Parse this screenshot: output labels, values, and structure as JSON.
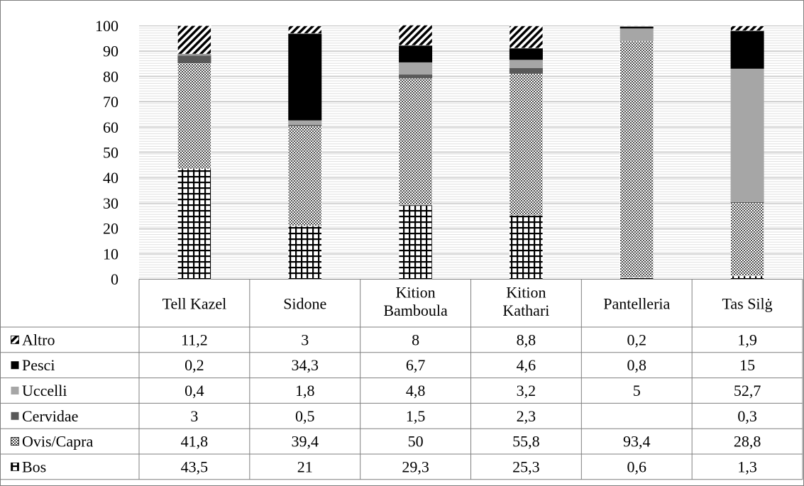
{
  "chart_data": {
    "type": "bar",
    "stacked": true,
    "categories": [
      [
        "Tell Kazel"
      ],
      [
        "Sidone"
      ],
      [
        "Kition",
        "Bamboula"
      ],
      [
        "Kition",
        "Kathari"
      ],
      [
        "Pantelleria"
      ],
      [
        "Tas Silġ"
      ]
    ],
    "series": [
      {
        "name": "Bos",
        "pattern": "grid",
        "values": [
          43.5,
          21,
          29.3,
          25.3,
          0.6,
          1.3
        ],
        "labels": [
          "43,5",
          "21",
          "29,3",
          "25,3",
          "0,6",
          "1,3"
        ]
      },
      {
        "name": "Ovis/Capra",
        "pattern": "checker",
        "values": [
          41.8,
          39.4,
          50,
          55.8,
          93.4,
          28.8
        ],
        "labels": [
          "41,8",
          "39,4",
          "50",
          "55,8",
          "93,4",
          "28,8"
        ]
      },
      {
        "name": "Cervidae",
        "pattern": "solid",
        "color": "#595959",
        "values": [
          3,
          0.5,
          1.5,
          2.3,
          null,
          0.3
        ],
        "labels": [
          "3",
          "0,5",
          "1,5",
          "2,3",
          "",
          "0,3"
        ]
      },
      {
        "name": "Uccelli",
        "pattern": "solid",
        "color": "#a6a6a6",
        "values": [
          0.4,
          1.8,
          4.8,
          3.2,
          5,
          52.7
        ],
        "labels": [
          "0,4",
          "1,8",
          "4,8",
          "3,2",
          "5",
          "52,7"
        ]
      },
      {
        "name": "Pesci",
        "pattern": "solid",
        "color": "#000000",
        "values": [
          0.2,
          34.3,
          6.7,
          4.6,
          0.8,
          15
        ],
        "labels": [
          "0,2",
          "34,3",
          "6,7",
          "4,6",
          "0,8",
          "15"
        ]
      },
      {
        "name": "Altro",
        "pattern": "diagonal",
        "values": [
          11.2,
          3,
          8,
          8.8,
          0.2,
          1.9
        ],
        "labels": [
          "11,2",
          "3",
          "8",
          "8,8",
          "0,2",
          "1,9"
        ]
      }
    ],
    "table_row_order": [
      "Altro",
      "Pesci",
      "Uccelli",
      "Cervidae",
      "Ovis/Capra",
      "Bos"
    ],
    "ylim": [
      0,
      100
    ],
    "yticks": [
      0,
      10,
      20,
      30,
      40,
      50,
      60,
      70,
      80,
      90,
      100
    ],
    "grid": true,
    "legend": "data-table"
  }
}
